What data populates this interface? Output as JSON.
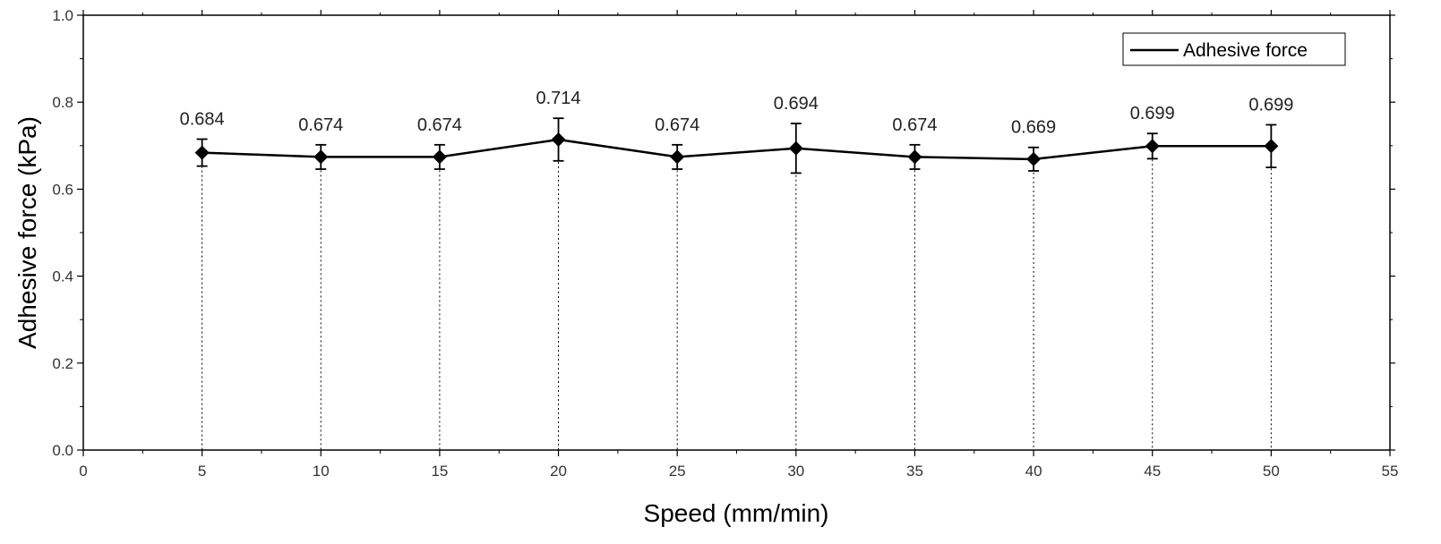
{
  "chart_data": {
    "type": "line",
    "title": "",
    "xlabel": "Speed (mm/min)",
    "ylabel": "Adhesive force (kPa)",
    "xlim": [
      0,
      55
    ],
    "ylim": [
      0,
      1.0
    ],
    "x_ticks": [
      0,
      5,
      10,
      15,
      20,
      25,
      30,
      35,
      40,
      45,
      50,
      55
    ],
    "x_tick_labels": [
      "0",
      "5",
      "10",
      "15",
      "20",
      "25",
      "30",
      "35",
      "40",
      "45",
      "50",
      "55"
    ],
    "y_ticks": [
      0,
      0.2,
      0.4,
      0.6,
      0.8,
      1.0
    ],
    "y_tick_labels": [
      "0.0",
      "0.2",
      "0.4",
      "0.6",
      "0.8",
      "1.0"
    ],
    "grid": false,
    "legend_position": "top-right",
    "drop_lines": true,
    "series": [
      {
        "name": "Adhesive force",
        "color": "#000000",
        "marker": "diamond",
        "x": [
          5,
          10,
          15,
          20,
          25,
          30,
          35,
          40,
          45,
          50
        ],
        "y": [
          0.684,
          0.674,
          0.674,
          0.714,
          0.674,
          0.694,
          0.674,
          0.669,
          0.699,
          0.699
        ],
        "error": [
          0.031,
          0.028,
          0.028,
          0.049,
          0.028,
          0.057,
          0.028,
          0.027,
          0.029,
          0.049
        ],
        "labels": [
          "0.684",
          "0.674",
          "0.674",
          "0.714",
          "0.674",
          "0.694",
          "0.674",
          "0.669",
          "0.699",
          "0.699"
        ]
      }
    ]
  }
}
